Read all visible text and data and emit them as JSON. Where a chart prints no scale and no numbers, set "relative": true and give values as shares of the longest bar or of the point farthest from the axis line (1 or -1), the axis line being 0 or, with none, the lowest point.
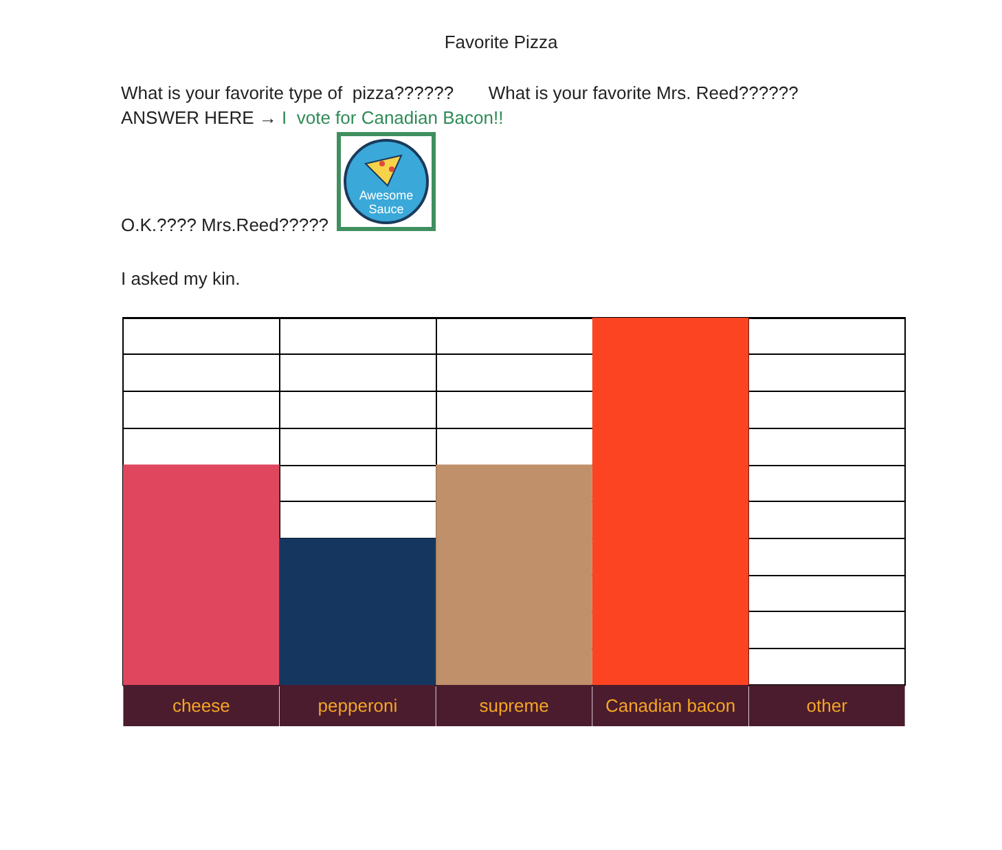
{
  "chart_data": {
    "type": "bar",
    "title": "Favorite Pizza",
    "annotations": [
      "What is your favorite type of  pizza??????       What is your favorite Mrs. Reed??????",
      "ANSWER HERE →",
      "I  vote for Canadian Bacon!!",
      "Awesome Sauce",
      "O.K.???? Mrs.Reed?????",
      "I asked my kin."
    ],
    "categories": [
      "cheese",
      "pepperoni",
      "supreme",
      "Canadian bacon",
      "other"
    ],
    "values": [
      0.6,
      0.4,
      0.6,
      1,
      0
    ],
    "colors": [
      "#e0475f",
      "#15375f",
      "#c0906a",
      "#fc4423",
      "#ffffff"
    ],
    "relative": true,
    "grid": true
  }
}
